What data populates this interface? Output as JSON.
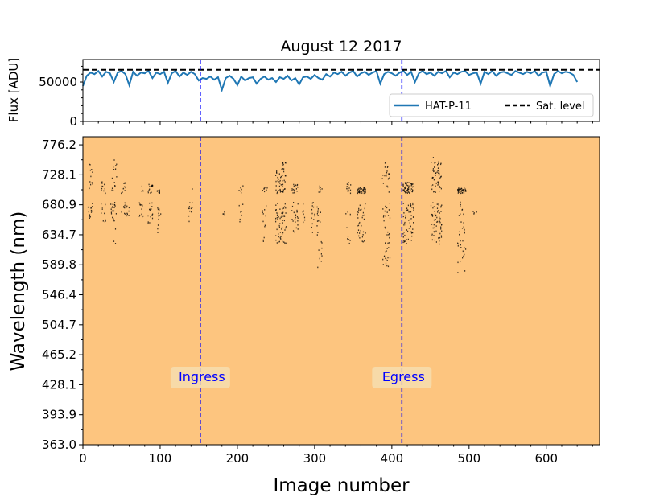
{
  "chart_data": [
    {
      "type": "line",
      "title": "August 12 2017",
      "ylabel": "Flux [ADU]",
      "xlabel": "",
      "xlim": [
        0,
        669
      ],
      "ylim": [
        0,
        78600
      ],
      "yticks": [
        0,
        50000
      ],
      "ytick_labels": [
        "0",
        "50000"
      ],
      "legend": {
        "placement": "lower-right",
        "entries": [
          "HAT-P-11",
          "Sat. level"
        ]
      },
      "series": [
        {
          "name": "HAT-P-11",
          "color": "#1f77b4",
          "x_step": 5,
          "values": [
            45000,
            58000,
            62000,
            60000,
            64000,
            57000,
            63000,
            61000,
            50000,
            62000,
            64000,
            60000,
            46000,
            63000,
            58000,
            62000,
            61000,
            64000,
            55000,
            62000,
            60000,
            63000,
            49000,
            61000,
            64000,
            57000,
            62000,
            59000,
            63000,
            60000,
            52000,
            55000,
            54000,
            57000,
            53000,
            56000,
            40000,
            55000,
            58000,
            54000,
            46000,
            57000,
            52000,
            55000,
            56000,
            48000,
            54000,
            57000,
            53000,
            55000,
            50000,
            56000,
            54000,
            58000,
            52000,
            55000,
            47000,
            56000,
            57000,
            54000,
            59000,
            55000,
            53000,
            60000,
            57000,
            62000,
            60000,
            63000,
            58000,
            62000,
            64000,
            57000,
            61000,
            63000,
            59000,
            62000,
            64000,
            48000,
            60000,
            63000,
            61000,
            58000,
            62000,
            64000,
            59000,
            63000,
            50000,
            61000,
            64000,
            60000,
            62000,
            58000,
            63000,
            61000,
            64000,
            56000,
            62000,
            60000,
            63000,
            64000,
            59000,
            61000,
            62000,
            48000,
            63000,
            60000,
            64000,
            58000,
            62000,
            63000,
            61000,
            59000,
            64000,
            62000,
            60000,
            63000,
            61000,
            64000,
            58000,
            62000,
            63000,
            45000,
            60000,
            64000,
            61000,
            63000,
            62000,
            59000,
            50000
          ]
        },
        {
          "name": "Sat. level",
          "color": "#000000",
          "value": 65535
        }
      ],
      "vlines": [
        152,
        413
      ]
    },
    {
      "type": "scatter",
      "xlabel": "Image number",
      "ylabel": "Wavelength (nm)",
      "background": "#fdc57f",
      "xlim": [
        0,
        669
      ],
      "xticks": [
        0,
        100,
        200,
        300,
        400,
        500,
        600
      ],
      "xtick_labels": [
        "0",
        "100",
        "200",
        "300",
        "400",
        "500",
        "600"
      ],
      "ytick_labels": [
        "363.0",
        "393.9",
        "428.1",
        "465.2",
        "504.7",
        "546.4",
        "589.8",
        "634.7",
        "680.9",
        "728.1",
        "776.2"
      ],
      "yticks": [
        363.0,
        393.9,
        428.1,
        465.2,
        504.7,
        546.4,
        589.8,
        634.7,
        680.9,
        728.1,
        776.2
      ],
      "ylim_top_index": 10.27,
      "vlines": [
        152,
        413
      ],
      "vline_color": "#0000ff",
      "annotations": [
        {
          "text": "Ingress",
          "x": 152
        },
        {
          "text": "Egress",
          "x": 413
        }
      ],
      "columns": [
        {
          "x": 9,
          "ranges": [
            [
              700,
              750
            ],
            [
              660,
              686
            ]
          ],
          "n": 25
        },
        {
          "x": 26,
          "ranges": [
            [
              700,
              718
            ],
            [
              652,
              686
            ]
          ],
          "n": 22
        },
        {
          "x": 38,
          "ranges": [
            [
              655,
              686
            ]
          ],
          "n": 14
        },
        {
          "x": 40,
          "ranges": [
            [
              700,
              757
            ],
            [
              621,
              686
            ]
          ],
          "n": 22
        },
        {
          "x": 52,
          "ranges": [
            [
              700,
              718
            ],
            [
              662,
              686
            ]
          ],
          "n": 20
        },
        {
          "x": 58,
          "ranges": [
            [
              665,
              686
            ]
          ],
          "n": 8
        },
        {
          "x": 75,
          "ranges": [
            [
              700,
              714
            ],
            [
              662,
              686
            ]
          ],
          "n": 16
        },
        {
          "x": 87,
          "ranges": [
            [
              700,
              714
            ],
            [
              649,
              686
            ]
          ],
          "n": 30
        },
        {
          "x": 98,
          "ranges": [
            [
              700,
              708
            ],
            [
              637,
              686
            ]
          ],
          "n": 22
        },
        {
          "x": 139,
          "ranges": [
            [
              700,
              708
            ],
            [
              655,
              686
            ]
          ],
          "n": 12
        },
        {
          "x": 182,
          "ranges": [
            [
              662,
              672
            ]
          ],
          "n": 4
        },
        {
          "x": 204,
          "ranges": [
            [
              700,
              714
            ],
            [
              652,
              686
            ]
          ],
          "n": 14
        },
        {
          "x": 235,
          "ranges": [
            [
              700,
              709
            ],
            [
              621,
              686
            ]
          ],
          "n": 20
        },
        {
          "x": 256,
          "ranges": [
            [
              700,
              750
            ],
            [
              621,
              686
            ]
          ],
          "n": 110
        },
        {
          "x": 274,
          "ranges": [
            [
              700,
              714
            ],
            [
              637,
              686
            ]
          ],
          "n": 40
        },
        {
          "x": 285,
          "ranges": [
            [
              655,
              686
            ]
          ],
          "n": 8
        },
        {
          "x": 297,
          "ranges": [
            [
              637,
              686
            ]
          ],
          "n": 14
        },
        {
          "x": 306,
          "ranges": [
            [
              700,
              714
            ],
            [
              586,
              686
            ]
          ],
          "n": 30
        },
        {
          "x": 343,
          "ranges": [
            [
              700,
              718
            ],
            [
              621,
              686
            ]
          ],
          "n": 22
        },
        {
          "x": 360,
          "ranges": [
            [
              700,
              709
            ],
            [
              621,
              686
            ]
          ],
          "n": 70
        },
        {
          "x": 392,
          "ranges": [
            [
              700,
              750
            ],
            [
              586,
              686
            ]
          ],
          "n": 60
        },
        {
          "x": 421,
          "ranges": [
            [
              700,
              718
            ],
            [
              621,
              686
            ]
          ],
          "n": 110
        },
        {
          "x": 457,
          "ranges": [
            [
              700,
              757
            ],
            [
              621,
              686
            ]
          ],
          "n": 110
        },
        {
          "x": 490,
          "ranges": [
            [
              700,
              709
            ],
            [
              579,
              686
            ]
          ],
          "n": 70
        },
        {
          "x": 507,
          "ranges": [
            [
              665,
              672
            ]
          ],
          "n": 4
        }
      ]
    }
  ]
}
